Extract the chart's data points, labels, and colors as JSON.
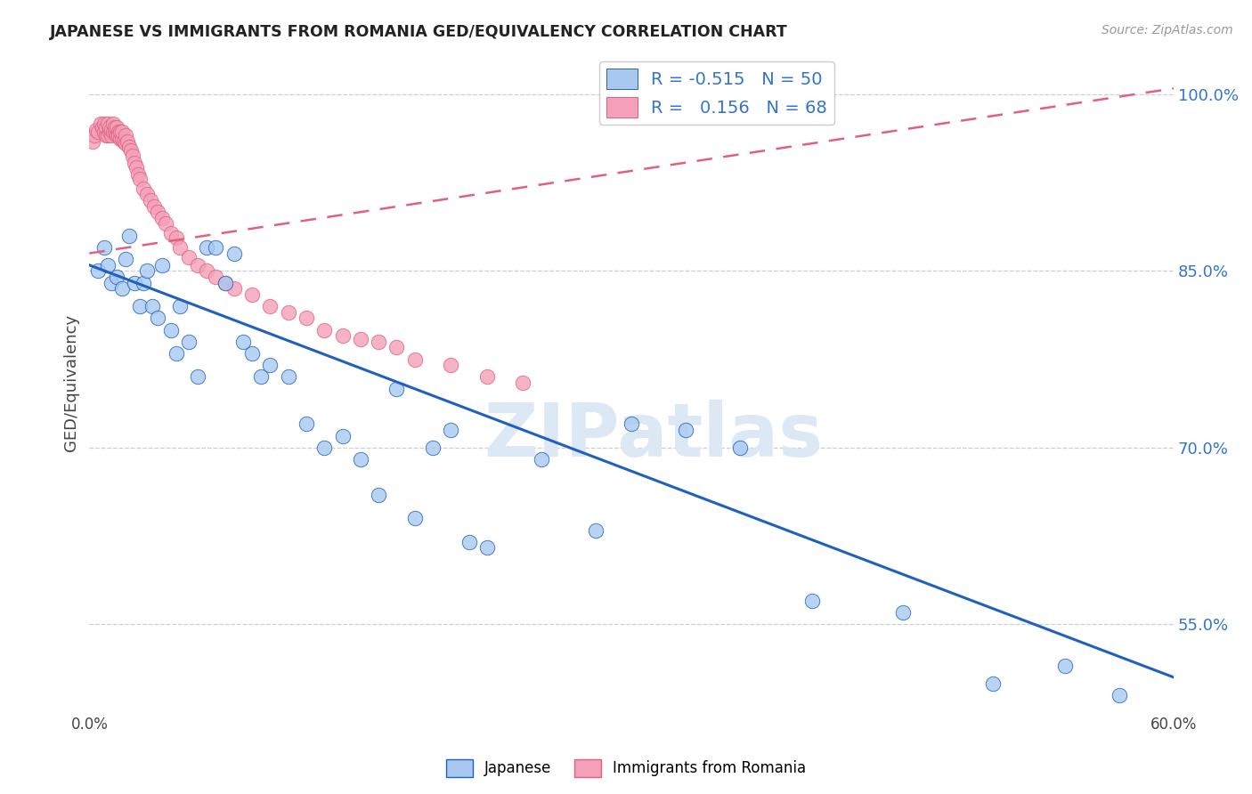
{
  "title": "JAPANESE VS IMMIGRANTS FROM ROMANIA GED/EQUIVALENCY CORRELATION CHART",
  "source": "Source: ZipAtlas.com",
  "xlabel": "",
  "ylabel": "GED/Equivalency",
  "legend_label1": "Japanese",
  "legend_label2": "Immigrants from Romania",
  "R1": -0.515,
  "N1": 50,
  "R2": 0.156,
  "N2": 68,
  "color1": "#a8c8f0",
  "color2": "#f4a0b8",
  "trendline1_color": "#2060c0",
  "trendline2_color": "#e06080",
  "xmin": 0.0,
  "xmax": 0.6,
  "ymin": 0.475,
  "ymax": 1.035,
  "yticks": [
    0.55,
    0.7,
    0.85,
    1.0
  ],
  "ytick_labels": [
    "55.0%",
    "70.0%",
    "85.0%",
    "100.0%"
  ],
  "xticks": [
    0.0,
    0.1,
    0.2,
    0.3,
    0.4,
    0.5,
    0.6
  ],
  "xtick_labels": [
    "0.0%",
    "",
    "",
    "",
    "",
    "",
    "60.0%"
  ],
  "background_color": "#ffffff",
  "grid_color": "#ccccdd",
  "japanese_x": [
    0.005,
    0.008,
    0.01,
    0.012,
    0.015,
    0.018,
    0.02,
    0.022,
    0.025,
    0.028,
    0.03,
    0.032,
    0.035,
    0.038,
    0.04,
    0.045,
    0.048,
    0.05,
    0.055,
    0.06,
    0.065,
    0.07,
    0.075,
    0.08,
    0.085,
    0.09,
    0.095,
    0.1,
    0.11,
    0.12,
    0.13,
    0.14,
    0.15,
    0.16,
    0.17,
    0.18,
    0.19,
    0.2,
    0.21,
    0.22,
    0.25,
    0.28,
    0.3,
    0.33,
    0.36,
    0.4,
    0.45,
    0.5,
    0.54,
    0.57
  ],
  "japanese_y": [
    0.85,
    0.87,
    0.855,
    0.84,
    0.845,
    0.835,
    0.86,
    0.88,
    0.84,
    0.82,
    0.84,
    0.85,
    0.82,
    0.81,
    0.855,
    0.8,
    0.78,
    0.82,
    0.79,
    0.76,
    0.87,
    0.87,
    0.84,
    0.865,
    0.79,
    0.78,
    0.76,
    0.77,
    0.76,
    0.72,
    0.7,
    0.71,
    0.69,
    0.66,
    0.75,
    0.64,
    0.7,
    0.715,
    0.62,
    0.615,
    0.69,
    0.63,
    0.72,
    0.715,
    0.7,
    0.57,
    0.56,
    0.5,
    0.515,
    0.49
  ],
  "romania_x": [
    0.002,
    0.003,
    0.004,
    0.005,
    0.006,
    0.007,
    0.008,
    0.008,
    0.009,
    0.009,
    0.01,
    0.01,
    0.011,
    0.011,
    0.012,
    0.012,
    0.013,
    0.013,
    0.014,
    0.014,
    0.015,
    0.015,
    0.016,
    0.016,
    0.017,
    0.017,
    0.018,
    0.018,
    0.019,
    0.02,
    0.02,
    0.021,
    0.022,
    0.023,
    0.024,
    0.025,
    0.026,
    0.027,
    0.028,
    0.03,
    0.032,
    0.034,
    0.036,
    0.038,
    0.04,
    0.042,
    0.045,
    0.048,
    0.05,
    0.055,
    0.06,
    0.065,
    0.07,
    0.075,
    0.08,
    0.09,
    0.1,
    0.11,
    0.12,
    0.13,
    0.14,
    0.15,
    0.16,
    0.17,
    0.18,
    0.2,
    0.22,
    0.24
  ],
  "romania_y": [
    0.96,
    0.965,
    0.97,
    0.968,
    0.975,
    0.972,
    0.968,
    0.975,
    0.965,
    0.972,
    0.965,
    0.975,
    0.968,
    0.972,
    0.965,
    0.97,
    0.968,
    0.975,
    0.968,
    0.972,
    0.965,
    0.972,
    0.968,
    0.965,
    0.962,
    0.968,
    0.962,
    0.968,
    0.96,
    0.958,
    0.965,
    0.96,
    0.955,
    0.952,
    0.948,
    0.942,
    0.938,
    0.932,
    0.928,
    0.92,
    0.915,
    0.91,
    0.905,
    0.9,
    0.895,
    0.89,
    0.882,
    0.878,
    0.87,
    0.862,
    0.855,
    0.85,
    0.845,
    0.84,
    0.835,
    0.83,
    0.82,
    0.815,
    0.81,
    0.8,
    0.795,
    0.792,
    0.79,
    0.785,
    0.775,
    0.77,
    0.76,
    0.755
  ],
  "trendline1_x0": 0.0,
  "trendline1_y0": 0.855,
  "trendline1_x1": 0.6,
  "trendline1_y1": 0.505,
  "trendline2_x0": 0.0,
  "trendline2_y0": 0.865,
  "trendline2_x1": 0.6,
  "trendline2_y1": 1.005
}
